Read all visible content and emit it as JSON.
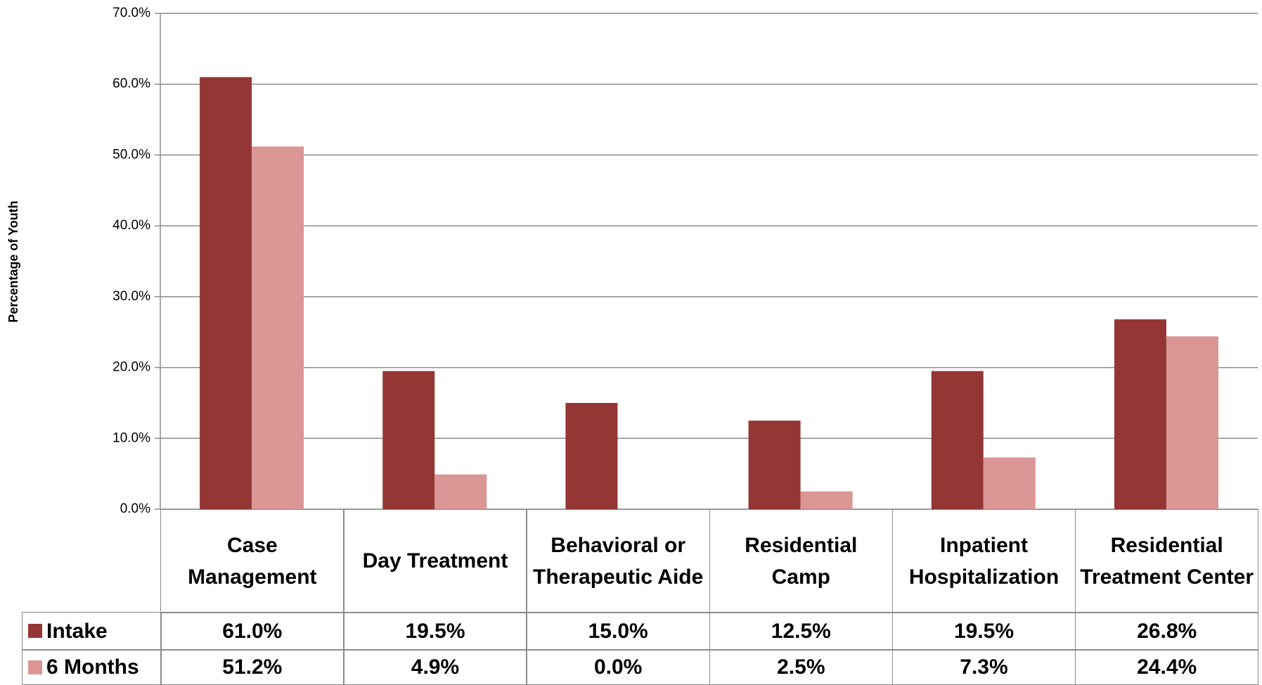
{
  "chart_data": {
    "type": "bar",
    "y_label": "Percentage of Youth",
    "categories": [
      "Case Management",
      "Day Treatment",
      "Behavioral or Therapeutic Aide",
      "Residential Camp",
      "Inpatient Hospitalization",
      "Residential Treatment Center"
    ],
    "series": [
      {
        "name": "Intake",
        "color": "#943634",
        "values": [
          61.0,
          19.5,
          15.0,
          12.5,
          19.5,
          26.8
        ],
        "value_labels": [
          "61.0%",
          "19.5%",
          "15.0%",
          "12.5%",
          "19.5%",
          "26.8%"
        ]
      },
      {
        "name": "6 Months",
        "color": "#d99694",
        "values": [
          51.2,
          4.9,
          0.0,
          2.5,
          7.3,
          24.4
        ],
        "value_labels": [
          "51.2%",
          "4.9%",
          "0.0%",
          "2.5%",
          "7.3%",
          "24.4%"
        ]
      }
    ],
    "ylim": [
      0,
      70
    ],
    "yticks": [
      {
        "value": 0,
        "label": "0.0%"
      },
      {
        "value": 10,
        "label": "10.0%"
      },
      {
        "value": 20,
        "label": "20.0%"
      },
      {
        "value": 30,
        "label": "30.0%"
      },
      {
        "value": 40,
        "label": "40.0%"
      },
      {
        "value": 50,
        "label": "50.0%"
      },
      {
        "value": 60,
        "label": "60.0%"
      },
      {
        "value": 70,
        "label": "70.0%"
      }
    ],
    "grid": true
  }
}
